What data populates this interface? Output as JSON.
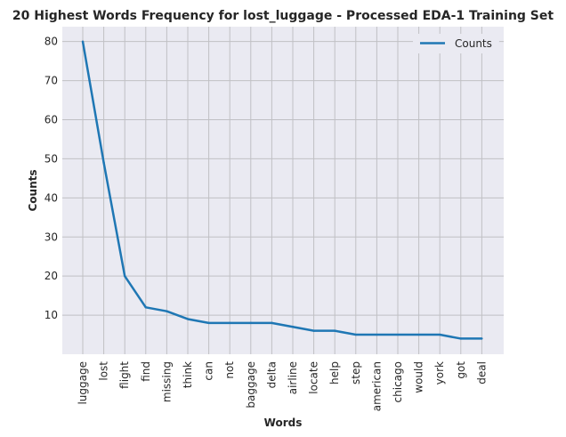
{
  "chart_data": {
    "type": "line",
    "title": "20 Highest Words Frequency for lost_luggage - Processed EDA-1 Training Set",
    "xlabel": "Words",
    "ylabel": "Counts",
    "categories": [
      "luggage",
      "lost",
      "flight",
      "find",
      "missing",
      "think",
      "can",
      "not",
      "baggage",
      "delta",
      "airline",
      "locate",
      "help",
      "step",
      "american",
      "chicago",
      "would",
      "york",
      "got",
      "deal"
    ],
    "series": [
      {
        "name": "Counts",
        "values": [
          80,
          49,
          20,
          12,
          11,
          9,
          8,
          8,
          8,
          8,
          7,
          6,
          6,
          5,
          5,
          5,
          5,
          5,
          4,
          4
        ]
      }
    ],
    "yticks": [
      10,
      20,
      30,
      40,
      50,
      60,
      70,
      80
    ],
    "ylim": [
      0,
      83.8
    ],
    "grid": true,
    "legend_position": "top-right",
    "colors": {
      "line": "#1f77b4",
      "plot_background": "#eaeaf2",
      "grid": "#c0c0c4",
      "text": "#262626"
    }
  }
}
